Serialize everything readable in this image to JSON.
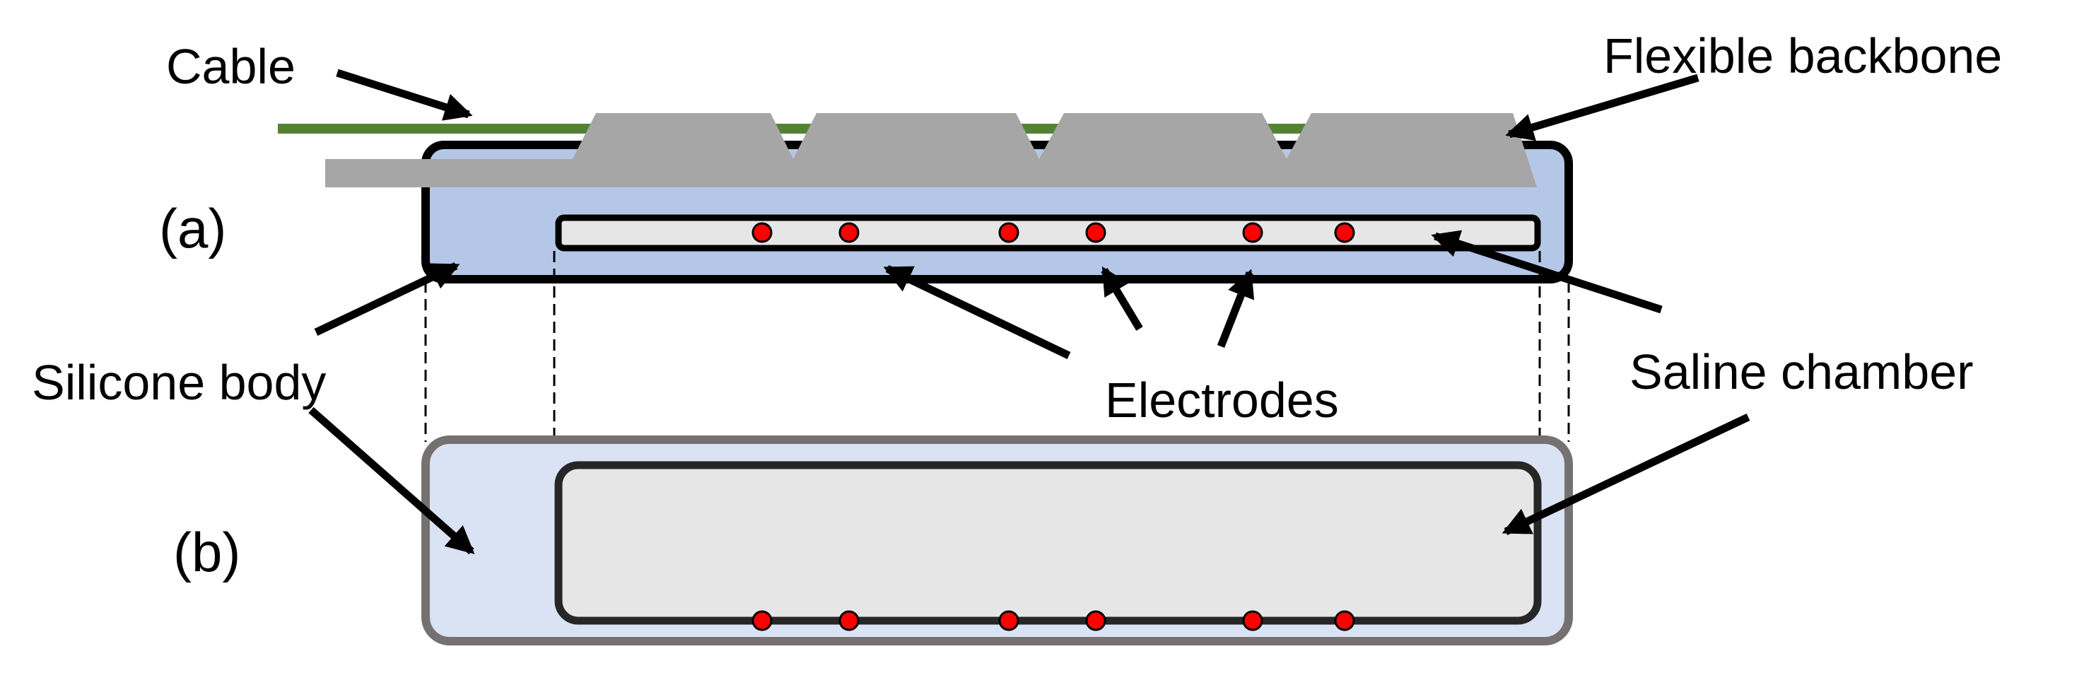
{
  "labels": {
    "cable": "Cable",
    "flexible_backbone": "Flexible backbone",
    "panel_a": "(a)",
    "panel_b": "(b)",
    "silicone_body": "Silicone body",
    "electrodes": "Electrodes",
    "saline_chamber": "Saline chamber"
  },
  "colors": {
    "silicone_body_a": "#b4c7e7",
    "silicone_body_b": "#dae3f3",
    "saline_chamber": "#e7e6e6",
    "backbone": "#a6a6a6",
    "cable": "#548235",
    "electrode": "#ff0000",
    "outline_a": "#000000",
    "outline_b": "#767171",
    "chamber_outline_b": "#262626"
  },
  "electrode_count": 6
}
